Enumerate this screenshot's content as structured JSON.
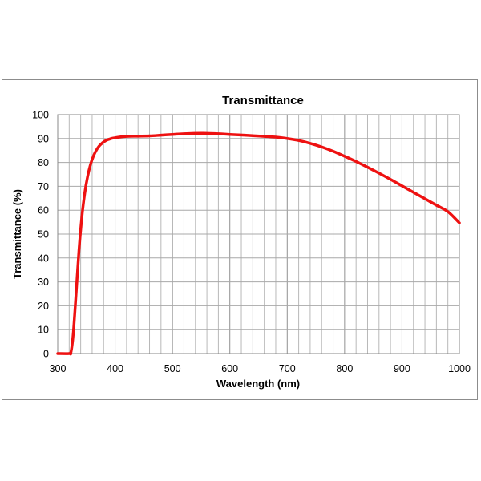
{
  "chart_data": {
    "type": "line",
    "title": "Transmittance",
    "xlabel": "Wavelength (nm)",
    "ylabel": "Transmittance (%)",
    "xlim": [
      300,
      1000
    ],
    "ylim": [
      0,
      100
    ],
    "x_major_ticks": [
      "300",
      "400",
      "500",
      "600",
      "700",
      "800",
      "900",
      "1000"
    ],
    "y_major_ticks": [
      "0",
      "10",
      "20",
      "30",
      "40",
      "50",
      "60",
      "70",
      "80",
      "90",
      "100"
    ],
    "x_minor_step": 20,
    "y_minor_step": 10,
    "grid": true,
    "series": [
      {
        "name": "Transmittance",
        "color": "#ee1111",
        "x": [
          300,
          320,
          323,
          327,
          332,
          337,
          342,
          347,
          352,
          357,
          362,
          367,
          372,
          377,
          382,
          387,
          392,
          397,
          402,
          410,
          420,
          440,
          460,
          480,
          500,
          520,
          550,
          580,
          600,
          640,
          680,
          700,
          720,
          740,
          760,
          780,
          800,
          820,
          840,
          860,
          880,
          900,
          920,
          940,
          960,
          980,
          1000
        ],
        "y": [
          0,
          0,
          0.5,
          8,
          25,
          43,
          57,
          67,
          74,
          79,
          82.5,
          85,
          86.8,
          88,
          88.9,
          89.5,
          89.9,
          90.2,
          90.4,
          90.7,
          90.9,
          91.0,
          91.1,
          91.4,
          91.7,
          92.0,
          92.2,
          92.0,
          91.7,
          91.2,
          90.6,
          90.0,
          89.2,
          88.0,
          86.5,
          84.7,
          82.6,
          80.4,
          78.0,
          75.5,
          72.9,
          70.2,
          67.5,
          64.8,
          62.1,
          59.4,
          54.7
        ]
      }
    ]
  }
}
